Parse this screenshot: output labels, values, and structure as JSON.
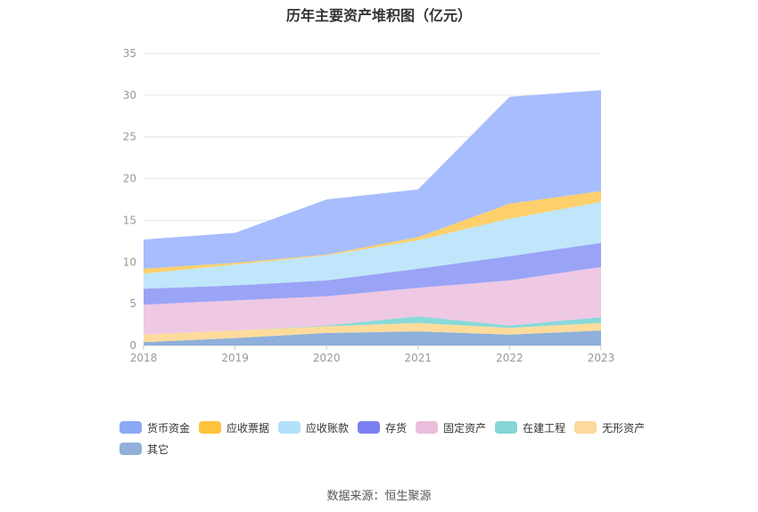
{
  "title": "历年主要资产堆积图（亿元）",
  "source": "数据来源：恒生聚源",
  "chart_data": {
    "type": "area",
    "stacked": true,
    "x": [
      "2018",
      "2019",
      "2020",
      "2021",
      "2022",
      "2023"
    ],
    "ylim": [
      0,
      35
    ],
    "yticks": [
      0,
      5,
      10,
      15,
      20,
      25,
      30,
      35
    ],
    "grid": true,
    "legend": "bottom",
    "series": [
      {
        "name": "其它",
        "color": "#8fb0dc",
        "values": [
          0.4,
          0.9,
          1.5,
          1.7,
          1.3,
          1.8
        ]
      },
      {
        "name": "无形资产",
        "color": "#fddc9b",
        "values": [
          0.9,
          0.9,
          0.8,
          1.0,
          0.8,
          0.9
        ]
      },
      {
        "name": "在建工程",
        "color": "#8ad9d9",
        "values": [
          0.0,
          0.0,
          0.1,
          0.8,
          0.3,
          0.7
        ]
      },
      {
        "name": "固定资产",
        "color": "#efc8e3",
        "values": [
          3.6,
          3.6,
          3.5,
          3.4,
          5.4,
          6.0
        ]
      },
      {
        "name": "存货",
        "color": "#9aa4f6",
        "values": [
          1.9,
          1.8,
          1.9,
          2.3,
          2.9,
          2.9
        ]
      },
      {
        "name": "应收账款",
        "color": "#bfe6fb",
        "values": [
          1.8,
          2.5,
          3.0,
          3.4,
          4.5,
          4.9
        ]
      },
      {
        "name": "应收票据",
        "color": "#fdd06b",
        "values": [
          0.6,
          0.2,
          0.1,
          0.4,
          1.8,
          1.3
        ]
      },
      {
        "name": "货币资金",
        "color": "#a7bdfd",
        "values": [
          3.5,
          3.6,
          6.6,
          5.7,
          12.8,
          12.1
        ]
      }
    ],
    "legend_order": [
      {
        "name": "货币资金",
        "color": "#8da8f6"
      },
      {
        "name": "应收票据",
        "color": "#fdc33c"
      },
      {
        "name": "应收账款",
        "color": "#b3e0fa"
      },
      {
        "name": "存货",
        "color": "#7c7ff0"
      },
      {
        "name": "固定资产",
        "color": "#ecbcdc"
      },
      {
        "name": "在建工程",
        "color": "#86d5d5"
      },
      {
        "name": "无形资产",
        "color": "#fdd99c"
      },
      {
        "name": "其它",
        "color": "#92b0d9"
      }
    ]
  }
}
